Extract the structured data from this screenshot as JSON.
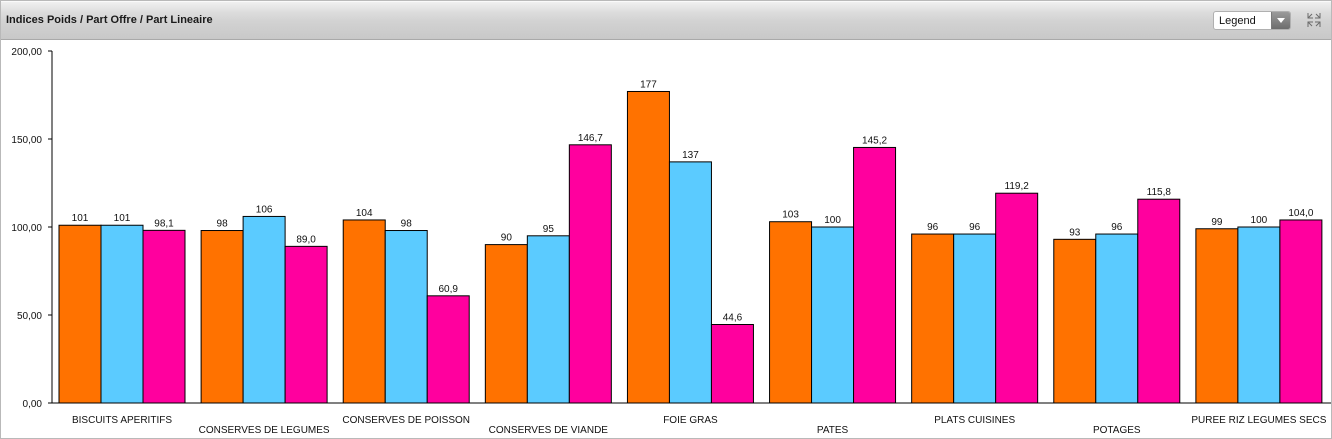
{
  "header": {
    "title": "Indices Poids / Part Offre /  Part Lineaire",
    "legend_select": "Legend"
  },
  "icons": {
    "corner": "collapse-arrows-icon",
    "dropdown": "chevron-down-icon"
  },
  "chart_data": {
    "type": "bar",
    "title": "",
    "xlabel": "",
    "ylabel": "",
    "ylim": [
      0,
      200
    ],
    "yticks": [
      0,
      50,
      100,
      150,
      200
    ],
    "ytick_labels": [
      "0,00",
      "50,00",
      "100,00",
      "150,00",
      "200,00"
    ],
    "grid": false,
    "categories": [
      "BISCUITS APERITIFS",
      "CONSERVES DE LEGUMES",
      "CONSERVES DE POISSON",
      "CONSERVES DE VIANDE",
      "FOIE GRAS",
      "PATES",
      "PLATS CUISINES",
      "POTAGES",
      "PUREE RIZ LEGUMES SECS"
    ],
    "series": [
      {
        "color": "#ff7200",
        "values": [
          101,
          98,
          104,
          90,
          177,
          103,
          96,
          93,
          99
        ],
        "labels": [
          "101",
          "98",
          "104",
          "90",
          "177",
          "103",
          "96",
          "93",
          "99"
        ]
      },
      {
        "color": "#5bcbff",
        "values": [
          101,
          106,
          98,
          95,
          137,
          100,
          96,
          96,
          100
        ],
        "labels": [
          "101",
          "106",
          "98",
          "95",
          "137",
          "100",
          "96",
          "96",
          "100"
        ]
      },
      {
        "color": "#ff009e",
        "values": [
          98.1,
          89.0,
          60.9,
          146.7,
          44.6,
          145.2,
          119.2,
          115.8,
          104.0
        ],
        "labels": [
          "98,1",
          "89,0",
          "60,9",
          "146,7",
          "44,6",
          "145,2",
          "119,2",
          "115,8",
          "104,0"
        ]
      }
    ]
  }
}
